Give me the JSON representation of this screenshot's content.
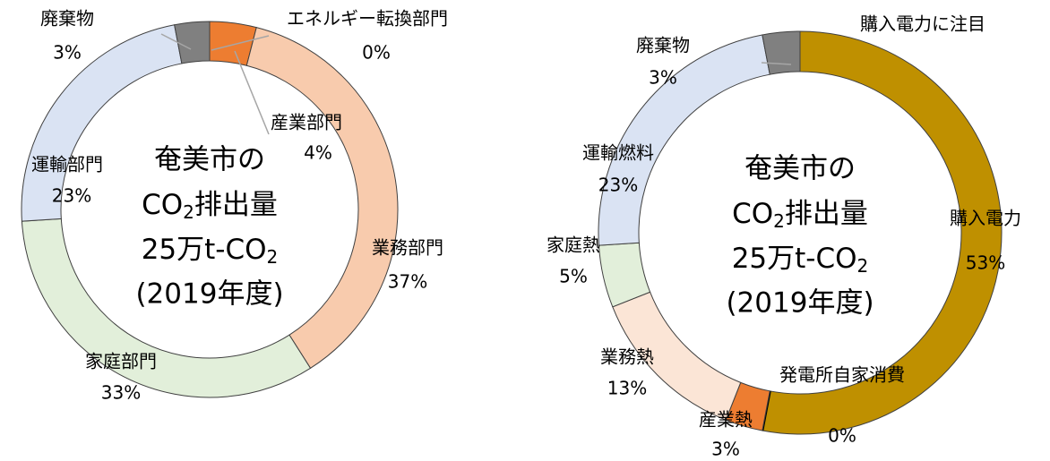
{
  "chart_data": [
    {
      "type": "donut",
      "center_text": {
        "line1": "奄美市の",
        "line2": [
          "CO",
          "2",
          "排出量"
        ],
        "line3": [
          "25万t-CO",
          "2"
        ],
        "line4": "(2019年度)"
      },
      "categories": [
        "エネルギー転換部門",
        "産業部門",
        "業務部門",
        "家庭部門",
        "運輸部門",
        "廃棄物"
      ],
      "values": [
        0,
        4,
        37,
        33,
        23,
        3
      ],
      "value_labels": [
        "0%",
        "4%",
        "37%",
        "33%",
        "23%",
        "3%"
      ],
      "colors": [
        "#000000",
        "#ed7d31",
        "#f8cbad",
        "#e2efda",
        "#dae3f3",
        "#808080"
      ]
    },
    {
      "type": "donut",
      "title": "購入電力に注目",
      "center_text": {
        "line1": "奄美市の",
        "line2": [
          "CO",
          "2",
          "排出量"
        ],
        "line3": [
          "25万t-CO",
          "2"
        ],
        "line4": "(2019年度)"
      },
      "categories": [
        "購入電力",
        "発電所自家消費",
        "産業熱",
        "業務熱",
        "家庭熱",
        "運輸燃料",
        "廃棄物"
      ],
      "values": [
        53,
        0,
        3,
        13,
        5,
        23,
        3
      ],
      "value_labels": [
        "53%",
        "0%",
        "3%",
        "13%",
        "5%",
        "23%",
        "3%"
      ],
      "colors": [
        "#bf9000",
        "#000000",
        "#ed7d31",
        "#fbe5d6",
        "#e2efda",
        "#dae3f3",
        "#808080"
      ]
    }
  ]
}
